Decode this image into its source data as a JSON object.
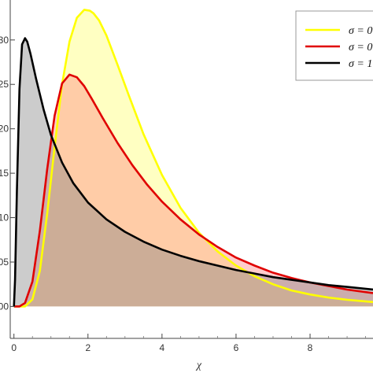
{
  "chart_data": {
    "type": "area",
    "title": "",
    "xlabel": "χ",
    "ylabel": "",
    "xlim": [
      -0.1,
      9.7
    ],
    "ylim": [
      -0.002,
      0.0345
    ],
    "x_ticks": [
      0,
      2,
      4,
      6,
      8
    ],
    "x_tick_labels": [
      "0",
      "2",
      "4",
      "6",
      "8"
    ],
    "y_ticks": [
      0,
      0.005,
      0.01,
      0.015,
      0.02,
      0.025,
      0.03,
      0.035
    ],
    "y_tick_labels": [
      ".00",
      "05",
      "10",
      "15",
      "20",
      "25",
      "30",
      "35"
    ],
    "grid": false,
    "legend_position": "top-right",
    "series": [
      {
        "name": "σ = 0",
        "color": "#ffff00",
        "fill": "#ffff66",
        "x": [
          0,
          0.3,
          0.5,
          0.7,
          0.9,
          1.1,
          1.3,
          1.5,
          1.7,
          1.9,
          2.05,
          2.15,
          2.3,
          2.5,
          2.8,
          3.1,
          3.5,
          4.0,
          4.5,
          5.0,
          5.5,
          6.0,
          6.5,
          7.0,
          7.5,
          8.0,
          8.5,
          9.0,
          9.7
        ],
        "values": [
          0,
          0,
          0.0008,
          0.004,
          0.0105,
          0.018,
          0.025,
          0.0298,
          0.0325,
          0.0334,
          0.0333,
          0.033,
          0.0322,
          0.0305,
          0.0272,
          0.0238,
          0.0194,
          0.0148,
          0.0111,
          0.0083,
          0.0062,
          0.0046,
          0.0034,
          0.0025,
          0.0018,
          0.00135,
          0.001,
          0.00075,
          0.0005
        ]
      },
      {
        "name": "σ = 0",
        "color": "#e00000",
        "fill": "#ff8080",
        "x": [
          0,
          0.15,
          0.3,
          0.5,
          0.7,
          0.9,
          1.1,
          1.3,
          1.5,
          1.7,
          1.9,
          2.1,
          2.4,
          2.8,
          3.2,
          3.6,
          4.0,
          4.5,
          5.0,
          5.5,
          6.0,
          6.5,
          7.0,
          7.5,
          8.0,
          8.5,
          9.0,
          9.7
        ],
        "values": [
          0,
          0,
          0.0004,
          0.0028,
          0.0085,
          0.0155,
          0.0215,
          0.0251,
          0.0261,
          0.0258,
          0.0248,
          0.0234,
          0.0212,
          0.0184,
          0.0159,
          0.0137,
          0.0118,
          0.0098,
          0.0081,
          0.0067,
          0.0055,
          0.0046,
          0.0038,
          0.0032,
          0.0027,
          0.0023,
          0.0019,
          0.0015
        ]
      },
      {
        "name": "σ = 1",
        "color": "#000000",
        "fill": "#808080",
        "x": [
          0,
          0.03,
          0.08,
          0.15,
          0.22,
          0.3,
          0.36,
          0.45,
          0.6,
          0.8,
          1.0,
          1.3,
          1.6,
          2.0,
          2.5,
          3.0,
          3.5,
          4.0,
          4.5,
          5.0,
          5.5,
          6.0,
          6.5,
          7.0,
          7.5,
          8.0,
          8.5,
          9.0,
          9.7
        ],
        "values": [
          0,
          0.003,
          0.013,
          0.0245,
          0.0295,
          0.0302,
          0.0298,
          0.0284,
          0.0256,
          0.0222,
          0.0193,
          0.0162,
          0.0139,
          0.0117,
          0.0098,
          0.0084,
          0.0073,
          0.0064,
          0.0057,
          0.0051,
          0.0046,
          0.0041,
          0.0037,
          0.0033,
          0.003,
          0.0027,
          0.0024,
          0.0022,
          0.0019
        ]
      }
    ]
  }
}
